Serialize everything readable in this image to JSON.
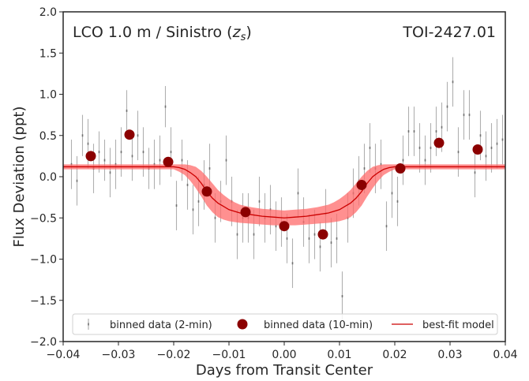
{
  "chart_data": {
    "type": "scatter",
    "annotations": {
      "instrument": "LCO 1.0 m / Sinistro (",
      "filter_symbol": "z",
      "filter_subscript": "s",
      "instrument_close": ")",
      "target": "TOI-2427.01"
    },
    "xlabel": "Days from Transit Center",
    "ylabel": "Flux Deviation (ppt)",
    "xlim": [
      -0.04,
      0.04
    ],
    "ylim": [
      -2.0,
      2.0
    ],
    "xticks": [
      "−0.04",
      "−0.03",
      "−0.02",
      "−0.01",
      "0.00",
      "0.01",
      "0.02",
      "0.03",
      "0.04"
    ],
    "yticks": [
      "−2.0",
      "−1.5",
      "−1.0",
      "−0.5",
      "0.0",
      "0.5",
      "1.0",
      "1.5",
      "2.0"
    ],
    "grid": false,
    "legend_position": "bottom",
    "series": [
      {
        "name": "binned data (2-min)",
        "kind": "errorbar",
        "color": "#b0b0b0",
        "x": [
          -0.0385,
          -0.0375,
          -0.0365,
          -0.0355,
          -0.0345,
          -0.0335,
          -0.0325,
          -0.0315,
          -0.0305,
          -0.0295,
          -0.0285,
          -0.0275,
          -0.0265,
          -0.0255,
          -0.0245,
          -0.0235,
          -0.0225,
          -0.0215,
          -0.0205,
          -0.0195,
          -0.0185,
          -0.0175,
          -0.0165,
          -0.0155,
          -0.0145,
          -0.0135,
          -0.0125,
          -0.0115,
          -0.0105,
          -0.0095,
          -0.0085,
          -0.0075,
          -0.0065,
          -0.0055,
          -0.0045,
          -0.0035,
          -0.0025,
          -0.0015,
          -0.0005,
          0.0005,
          0.0015,
          0.0025,
          0.0035,
          0.0045,
          0.0055,
          0.0065,
          0.0075,
          0.0085,
          0.0095,
          0.0105,
          0.0115,
          0.0125,
          0.0135,
          0.0145,
          0.0155,
          0.0165,
          0.0175,
          0.0185,
          0.0195,
          0.0205,
          0.0215,
          0.0225,
          0.0235,
          0.0245,
          0.0255,
          0.0265,
          0.0275,
          0.0285,
          0.0295,
          0.0305,
          0.0315,
          0.0325,
          0.0335,
          0.0345,
          0.0355,
          0.0365,
          0.0375,
          0.0385,
          0.0395
        ],
        "y": [
          0.15,
          -0.05,
          0.5,
          0.4,
          0.1,
          0.3,
          0.2,
          0.05,
          0.15,
          0.3,
          0.8,
          0.25,
          0.5,
          0.3,
          0.1,
          0.15,
          0.2,
          0.85,
          0.3,
          -0.35,
          0.2,
          -0.1,
          -0.4,
          -0.3,
          -0.1,
          0.1,
          -0.5,
          -0.3,
          0.2,
          -0.3,
          -0.7,
          -0.5,
          -0.5,
          -0.7,
          -0.3,
          -0.5,
          -0.4,
          -0.6,
          -0.55,
          -0.75,
          -1.05,
          -0.2,
          -0.55,
          -0.75,
          -0.7,
          -0.85,
          -0.45,
          -0.8,
          -0.75,
          -1.45,
          -0.5,
          -0.2,
          -0.05,
          0.1,
          0.35,
          0.1,
          0.15,
          -0.6,
          -0.2,
          -0.3,
          0.2,
          0.55,
          0.55,
          0.35,
          0.2,
          0.35,
          0.55,
          0.6,
          0.85,
          1.15,
          0.3,
          0.75,
          0.75,
          0.05,
          0.5,
          0.25,
          0.35,
          0.4,
          0.45
        ],
        "err": [
          0.3,
          0.3,
          0.25,
          0.3,
          0.3,
          0.25,
          0.25,
          0.3,
          0.3,
          0.3,
          0.25,
          0.3,
          0.3,
          0.3,
          0.25,
          0.3,
          0.3,
          0.25,
          0.3,
          0.3,
          0.25,
          0.3,
          0.3,
          0.3,
          0.3,
          0.3,
          0.3,
          0.25,
          0.3,
          0.3,
          0.3,
          0.3,
          0.3,
          0.3,
          0.3,
          0.3,
          0.3,
          0.3,
          0.3,
          0.3,
          0.3,
          0.3,
          0.3,
          0.3,
          0.3,
          0.3,
          0.3,
          0.3,
          0.3,
          0.3,
          0.3,
          0.3,
          0.3,
          0.3,
          0.3,
          0.3,
          0.3,
          0.3,
          0.3,
          0.3,
          0.3,
          0.3,
          0.3,
          0.3,
          0.3,
          0.3,
          0.3,
          0.3,
          0.3,
          0.3,
          0.3,
          0.3,
          0.3,
          0.3,
          0.3,
          0.3,
          0.3,
          0.3,
          0.3
        ]
      },
      {
        "name": "binned data (10-min)",
        "kind": "scatter",
        "color": "#8b0000",
        "x": [
          -0.035,
          -0.028,
          -0.021,
          -0.014,
          -0.007,
          0.0,
          0.007,
          0.014,
          0.021,
          0.028,
          0.035
        ],
        "y": [
          0.25,
          0.51,
          0.18,
          -0.18,
          -0.43,
          -0.6,
          -0.7,
          -0.1,
          0.1,
          0.41,
          0.33
        ]
      },
      {
        "name": "best-fit model",
        "kind": "line",
        "color": "#cc0000",
        "band_color": "#ff6b6b",
        "band_halfwidth": 0.035,
        "baseline": 0.12,
        "x": [
          -0.04,
          -0.02,
          -0.019,
          -0.018,
          -0.017,
          -0.016,
          -0.015,
          -0.014,
          -0.013,
          -0.012,
          -0.011,
          -0.01,
          -0.009,
          -0.008,
          -0.006,
          -0.004,
          -0.002,
          0.0,
          0.002,
          0.004,
          0.006,
          0.008,
          0.009,
          0.01,
          0.011,
          0.012,
          0.013,
          0.014,
          0.015,
          0.016,
          0.017,
          0.018,
          0.019,
          0.02,
          0.04
        ],
        "y": [
          0.12,
          0.12,
          0.11,
          0.09,
          0.05,
          0.0,
          -0.08,
          -0.18,
          -0.26,
          -0.32,
          -0.36,
          -0.4,
          -0.42,
          -0.44,
          -0.46,
          -0.48,
          -0.49,
          -0.5,
          -0.49,
          -0.48,
          -0.46,
          -0.44,
          -0.42,
          -0.4,
          -0.36,
          -0.32,
          -0.26,
          -0.18,
          -0.08,
          0.0,
          0.05,
          0.09,
          0.11,
          0.12,
          0.12
        ],
        "band_lower": [
          0.09,
          0.09,
          0.06,
          0.02,
          -0.05,
          -0.14,
          -0.24,
          -0.35,
          -0.43,
          -0.49,
          -0.52,
          -0.54,
          -0.55,
          -0.56,
          -0.57,
          -0.58,
          -0.59,
          -0.59,
          -0.59,
          -0.58,
          -0.57,
          -0.56,
          -0.55,
          -0.54,
          -0.52,
          -0.49,
          -0.43,
          -0.35,
          -0.24,
          -0.14,
          -0.05,
          0.02,
          0.06,
          0.09,
          0.09
        ],
        "band_upper": [
          0.15,
          0.15,
          0.15,
          0.15,
          0.14,
          0.12,
          0.07,
          0.0,
          -0.08,
          -0.16,
          -0.22,
          -0.27,
          -0.31,
          -0.34,
          -0.37,
          -0.39,
          -0.4,
          -0.41,
          -0.4,
          -0.39,
          -0.37,
          -0.34,
          -0.31,
          -0.27,
          -0.22,
          -0.16,
          -0.08,
          0.0,
          0.07,
          0.12,
          0.14,
          0.15,
          0.15,
          0.15,
          0.15
        ]
      }
    ]
  }
}
